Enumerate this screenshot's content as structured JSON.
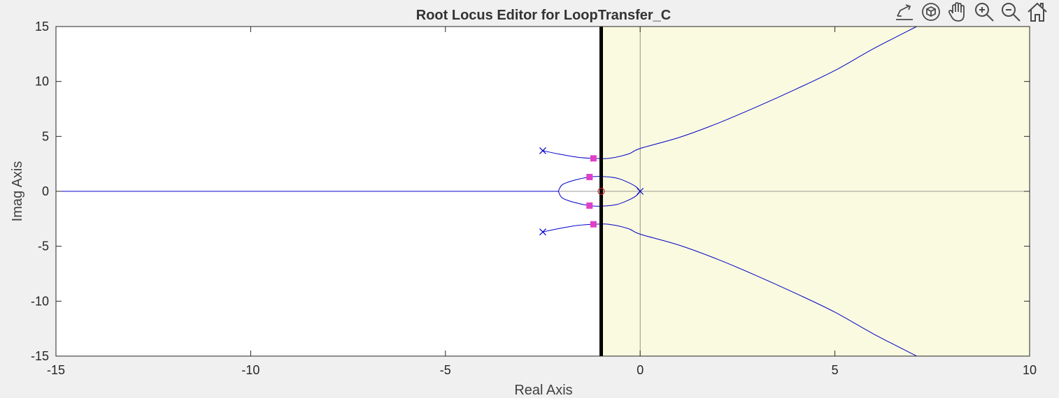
{
  "toolbar": {
    "items": [
      {
        "icon": "brush-export-icon"
      },
      {
        "icon": "rotate-3d-icon"
      },
      {
        "icon": "pan-hand-icon"
      },
      {
        "icon": "zoom-in-icon"
      },
      {
        "icon": "zoom-out-icon"
      },
      {
        "icon": "home-icon"
      }
    ]
  },
  "chart_data": {
    "type": "line",
    "title": "Root Locus Editor for LoopTransfer_C",
    "xlabel": "Real Axis",
    "ylabel": "Imag Axis",
    "xlim": [
      -15,
      10
    ],
    "ylim": [
      -15,
      15
    ],
    "xticks": [
      -15,
      -10,
      -5,
      0,
      5,
      10
    ],
    "yticks": [
      -15,
      -10,
      -5,
      0,
      5,
      10,
      15
    ],
    "grid": false,
    "colors": {
      "locus": "#0000c8",
      "unstable_region": "#fafae0",
      "design_marker": "#e040c8",
      "zero_marker": "#c81e1e",
      "constraint_line": "#000000"
    },
    "shaded_region": {
      "x_from": -1,
      "x_to": 10
    },
    "constraint_line_x": -1,
    "poles": [
      [
        -2.5,
        3.7
      ],
      [
        -2.5,
        -3.7
      ],
      [
        0,
        0
      ]
    ],
    "zeros": [
      [
        -1,
        0
      ]
    ],
    "closed_loop_poles": [
      [
        -1.2,
        3.0
      ],
      [
        -1.2,
        -3.0
      ],
      [
        -1.3,
        1.3
      ],
      [
        -1.3,
        -1.3
      ]
    ],
    "branches": [
      {
        "points": [
          [
            -15,
            0
          ],
          [
            -2.1,
            0
          ]
        ]
      },
      {
        "points": [
          [
            -2.1,
            0
          ],
          [
            -2.0,
            0.6
          ],
          [
            -1.7,
            1.0
          ],
          [
            -1.3,
            1.3
          ],
          [
            -1.0,
            1.35
          ],
          [
            -0.6,
            1.2
          ],
          [
            -0.3,
            0.8
          ],
          [
            -0.1,
            0.4
          ],
          [
            0,
            0
          ]
        ]
      },
      {
        "points": [
          [
            -2.1,
            0
          ],
          [
            -2.0,
            -0.6
          ],
          [
            -1.7,
            -1.0
          ],
          [
            -1.3,
            -1.3
          ],
          [
            -1.0,
            -1.35
          ],
          [
            -0.6,
            -1.2
          ],
          [
            -0.3,
            -0.8
          ],
          [
            -0.1,
            -0.4
          ],
          [
            0,
            0
          ]
        ]
      },
      {
        "points": [
          [
            -2.5,
            3.7
          ],
          [
            -2.1,
            3.4
          ],
          [
            -1.6,
            3.1
          ],
          [
            -1.2,
            3.0
          ],
          [
            -0.8,
            3.0
          ],
          [
            -0.3,
            3.4
          ],
          [
            0,
            3.9
          ],
          [
            1,
            4.9
          ],
          [
            2,
            6.2
          ],
          [
            3,
            7.7
          ],
          [
            4,
            9.3
          ],
          [
            5,
            11.0
          ],
          [
            6,
            13.0
          ],
          [
            7.1,
            15
          ]
        ]
      },
      {
        "points": [
          [
            -2.5,
            -3.7
          ],
          [
            -2.1,
            -3.4
          ],
          [
            -1.6,
            -3.1
          ],
          [
            -1.2,
            -3.0
          ],
          [
            -0.8,
            -3.0
          ],
          [
            -0.3,
            -3.4
          ],
          [
            0,
            -3.9
          ],
          [
            1,
            -4.9
          ],
          [
            2,
            -6.2
          ],
          [
            3,
            -7.7
          ],
          [
            4,
            -9.3
          ],
          [
            5,
            -11.0
          ],
          [
            6,
            -13.0
          ],
          [
            7.1,
            -15
          ]
        ]
      }
    ]
  }
}
